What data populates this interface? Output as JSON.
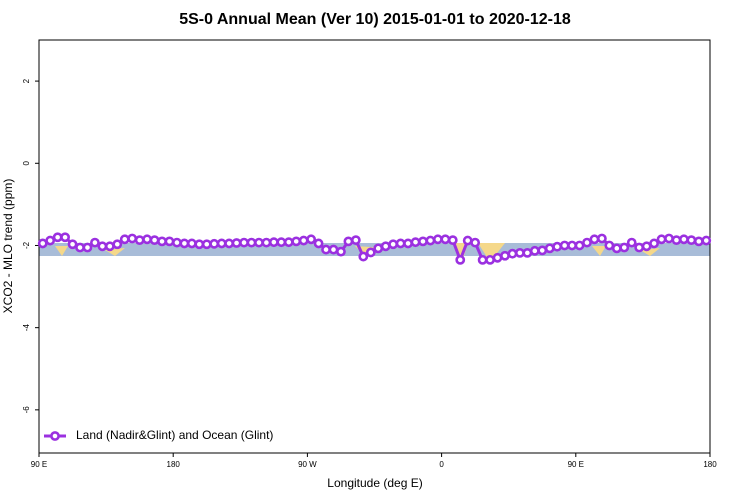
{
  "chart_data": {
    "type": "line",
    "title": "5S-0 Annual Mean (Ver 10)   2015-01-01 to 2020-12-18",
    "x_label": "Longitude (deg E)",
    "y_label": "XCO2 - MLO trend (ppm)",
    "xlim": [
      90,
      540
    ],
    "ylim": [
      -7.05,
      3
    ],
    "xticks": [
      {
        "value": 90,
        "label": "90 E"
      },
      180,
      {
        "value": 270,
        "label": "90 W"
      },
      {
        "value": 360,
        "label": "0"
      },
      {
        "value": 450,
        "label": "90 E"
      },
      {
        "value": 540,
        "label": "180"
      }
    ],
    "yticks": [
      -6,
      -4,
      -2,
      0,
      2
    ],
    "legend": "bottom-left",
    "x": [
      92.5,
      97.5,
      102.5,
      107.5,
      112.5,
      117.5,
      122.5,
      127.5,
      132.5,
      137.5,
      142.5,
      147.5,
      152.5,
      157.5,
      162.5,
      167.5,
      172.5,
      177.5,
      182.5,
      187.5,
      192.5,
      197.5,
      202.5,
      207.5,
      212.5,
      217.5,
      222.5,
      227.5,
      232.5,
      237.5,
      242.5,
      247.5,
      252.5,
      257.5,
      262.5,
      267.5,
      272.5,
      277.5,
      282.5,
      287.5,
      292.5,
      297.5,
      302.5,
      307.5,
      312.5,
      317.5,
      322.5,
      327.5,
      332.5,
      337.5,
      342.5,
      347.5,
      352.5,
      357.5,
      362.5,
      367.5,
      372.5,
      377.5,
      382.5,
      387.5,
      392.5,
      397.5,
      402.5,
      407.5,
      412.5,
      417.5,
      422.5,
      427.5,
      432.5,
      437.5,
      442.5,
      447.5,
      452.5,
      457.5,
      462.5,
      467.5,
      472.5,
      477.5,
      482.5,
      487.5,
      492.5,
      497.5,
      502.5,
      507.5,
      512.5,
      517.5,
      522.5,
      527.5,
      532.5,
      537.5
    ],
    "series": [
      {
        "name": "Land (Nadir&Glint) and Ocean (Glint)",
        "color": "#9b30e0",
        "values": [
          -1.95,
          -1.88,
          -1.8,
          -1.8,
          -1.97,
          -2.05,
          -2.05,
          -1.93,
          -2.02,
          -2.02,
          -1.97,
          -1.85,
          -1.83,
          -1.87,
          -1.85,
          -1.87,
          -1.9,
          -1.9,
          -1.93,
          -1.95,
          -1.95,
          -1.97,
          -1.97,
          -1.96,
          -1.95,
          -1.95,
          -1.94,
          -1.93,
          -1.93,
          -1.93,
          -1.93,
          -1.92,
          -1.92,
          -1.92,
          -1.9,
          -1.88,
          -1.85,
          -1.95,
          -2.1,
          -2.1,
          -2.15,
          -1.9,
          -1.87,
          -2.27,
          -2.17,
          -2.07,
          -2.02,
          -1.97,
          -1.95,
          -1.95,
          -1.92,
          -1.9,
          -1.88,
          -1.85,
          -1.85,
          -1.87,
          -2.35,
          -1.88,
          -1.93,
          -2.35,
          -2.35,
          -2.3,
          -2.25,
          -2.2,
          -2.18,
          -2.18,
          -2.13,
          -2.12,
          -2.07,
          -2.03,
          -2.0,
          -2.0,
          -2.0,
          -1.93,
          -1.85,
          -1.83,
          -2.0,
          -2.07,
          -2.05,
          -1.93,
          -2.05,
          -2.02,
          -1.95,
          -1.85,
          -1.83,
          -1.87,
          -1.85,
          -1.87,
          -1.9,
          -1.88
        ]
      }
    ]
  }
}
